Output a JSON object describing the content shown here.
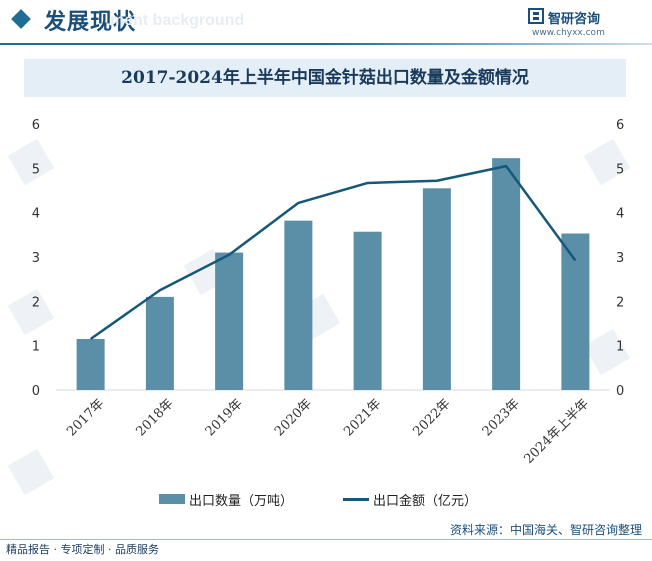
{
  "header": {
    "title": "发展现状",
    "ghost_text": "ment background",
    "brand_name": "智研咨询",
    "brand_url": "www.chyxx.com"
  },
  "chart_data": {
    "type": "bar",
    "title": "2017-2024年上半年中国金针菇出口数量及金额情况",
    "categories": [
      "2017年",
      "2018年",
      "2019年",
      "2020年",
      "2021年",
      "2022年",
      "2023年",
      "2024年上半年"
    ],
    "series": [
      {
        "name": "出口数量（万吨）",
        "type": "bar",
        "axis": "left",
        "values": [
          1.15,
          2.1,
          3.1,
          3.82,
          3.57,
          4.55,
          5.23,
          3.53
        ]
      },
      {
        "name": "出口金额（亿元）",
        "type": "line",
        "axis": "right",
        "values": [
          1.15,
          2.25,
          3.05,
          4.22,
          4.67,
          4.72,
          5.05,
          2.92
        ]
      }
    ],
    "ylim_left": [
      0,
      6
    ],
    "ylim_right": [
      0,
      6
    ],
    "yticks": [
      "0",
      "1",
      "2",
      "3",
      "4",
      "5",
      "6"
    ],
    "grid": false,
    "legend": "bottom",
    "colors": {
      "bar": "#5b8fa8",
      "line": "#16587a"
    }
  },
  "source": "资料来源：中国海关、智研咨询整理",
  "footer": "精品报告 · 专项定制 · 品质服务"
}
